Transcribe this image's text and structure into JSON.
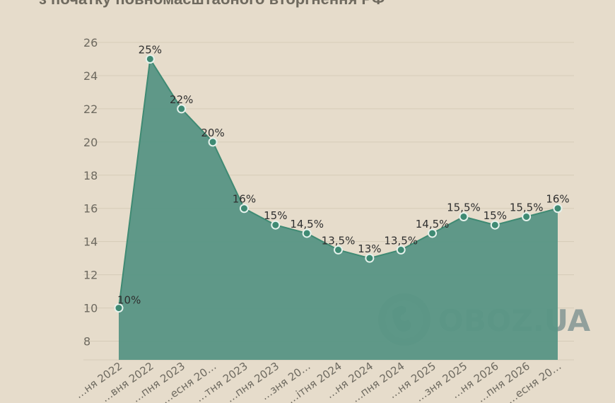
{
  "header": {
    "title": "з початку повномасштабного вторгнення РФ"
  },
  "watermark": {
    "text": "OBOZ.UA",
    "icon": "globe-icon"
  },
  "colors": {
    "background": "#e6dccb",
    "area_fill": "#5a9685",
    "line": "#3f8a73",
    "marker_fill": "#3f8a73",
    "marker_stroke": "#e6f2ec",
    "grid": "#d5cbb8"
  },
  "chart_data": {
    "type": "area",
    "title": "з початку повномасштабного вторгнення РФ",
    "xlabel": "",
    "ylabel": "",
    "ylim": [
      7,
      26
    ],
    "yticks": [
      8,
      10,
      12,
      14,
      16,
      18,
      20,
      22,
      24,
      26
    ],
    "grid": true,
    "legend": "none",
    "categories": [
      "…ня 2022",
      "…вня 2022",
      "…пня 2023",
      "…есня 20…",
      "…тня 2023",
      "…пня 2023",
      "…зня 20…",
      "…ітня 2024",
      "…ня 2024",
      "…пня 2024",
      "…ня 2025",
      "…зня 2025",
      "…ня 2026",
      "…пня 2026",
      "…есня 20…"
    ],
    "series": [
      {
        "values": [
          10,
          25,
          22,
          20,
          16,
          15,
          14.5,
          13.5,
          13,
          13.5,
          14.5,
          15.5,
          15,
          15.5,
          16
        ],
        "labels": [
          "10%",
          "25%",
          "22%",
          "20%",
          "16%",
          "15%",
          "14,5%",
          "13,5%",
          "13%",
          "13,5%",
          "14,5%",
          "15,5%",
          "15%",
          "15,5%",
          "16%"
        ]
      }
    ]
  }
}
